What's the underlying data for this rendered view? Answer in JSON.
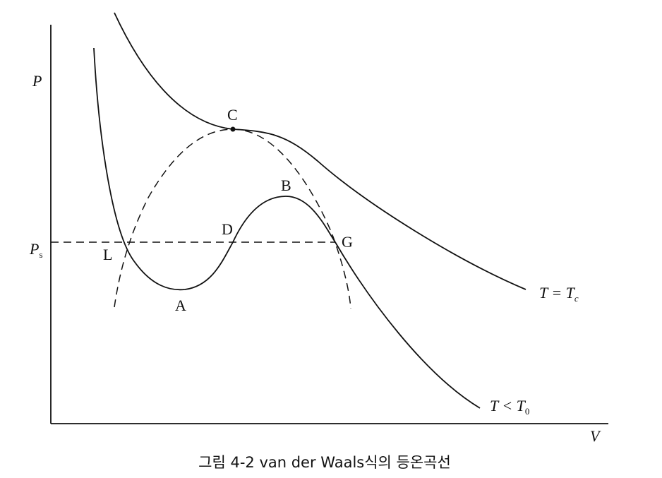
{
  "axes": {
    "y_label": "P",
    "x_label": "V",
    "ps_label": {
      "main": "P",
      "sub": "s"
    }
  },
  "points": {
    "c": "C",
    "b": "B",
    "d": "D",
    "l": "L",
    "a": "A",
    "g": "G"
  },
  "curves": {
    "critical": {
      "main": "T = T",
      "sub": "c"
    },
    "subcritical": {
      "main": "T < T",
      "sub": "0"
    }
  },
  "caption": "그림 4-2  van der Waals식의 등온곡선"
}
